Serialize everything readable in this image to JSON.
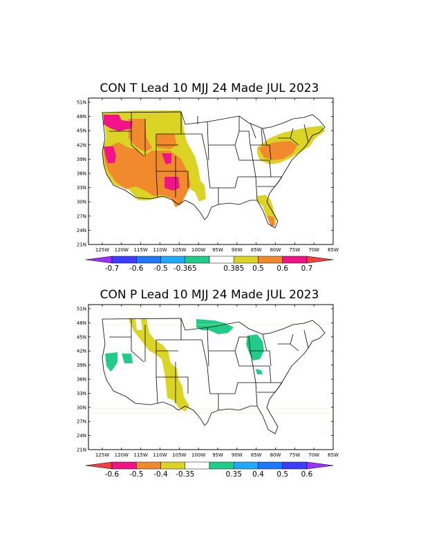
{
  "panels": [
    {
      "title": "CON T Lead 10 MJJ 24 Made JUL 2023",
      "lat_labels": [
        "51N",
        "48N",
        "45N",
        "42N",
        "39N",
        "36N",
        "33N",
        "30N",
        "27N",
        "24N",
        "21N"
      ],
      "lon_labels": [
        "125W",
        "120W",
        "115W",
        "110W",
        "105W",
        "100W",
        "95W",
        "90W",
        "85W",
        "80W",
        "75W",
        "70W",
        "65W"
      ],
      "colorbar": {
        "colors": [
          "#9b30ff",
          "#3c3cff",
          "#1e78ff",
          "#20aaff",
          "#20cc88",
          "#ffffff",
          "#dcd425",
          "#f08a2c",
          "#f01488",
          "#f04040"
        ],
        "labels": [
          "-0.7",
          "-0.6",
          "-0.5",
          "-0.365",
          "0.385",
          "0.5",
          "0.6",
          "0.7"
        ]
      },
      "regions": [
        {
          "name": "west-warm-orange",
          "color": "#f08a2c"
        },
        {
          "name": "west-warm-yellow",
          "color": "#dcd425"
        },
        {
          "name": "west-warm-magenta",
          "color": "#f01488"
        },
        {
          "name": "northeast-warm-yellow",
          "color": "#dcd425"
        },
        {
          "name": "florida-warm",
          "color": "#dcd425"
        }
      ]
    },
    {
      "title": "CON P  Lead 10 MJJ 24 Made JUL 2023",
      "lat_labels": [
        "51N",
        "48N",
        "45N",
        "42N",
        "39N",
        "36N",
        "33N",
        "30N",
        "27N",
        "24N",
        "21N"
      ],
      "lon_labels": [
        "125W",
        "120W",
        "115W",
        "110W",
        "105W",
        "100W",
        "95W",
        "90W",
        "85W",
        "80W",
        "75W",
        "70W",
        "65W"
      ],
      "colorbar": {
        "colors": [
          "#f04040",
          "#f01488",
          "#f08a2c",
          "#dcd425",
          "#ffffff",
          "#20cc88",
          "#20aaff",
          "#1e78ff",
          "#3c3cff",
          "#9b30ff"
        ],
        "labels": [
          "-0.6",
          "-0.5",
          "-0.4",
          "-0.35",
          "0.35",
          "0.4",
          "0.5",
          "0.6"
        ]
      },
      "regions": [
        {
          "name": "rockies-dry",
          "color": "#dcd425"
        },
        {
          "name": "california-wet",
          "color": "#20cc88"
        },
        {
          "name": "great-lakes-wet",
          "color": "#20cc88"
        }
      ]
    }
  ]
}
